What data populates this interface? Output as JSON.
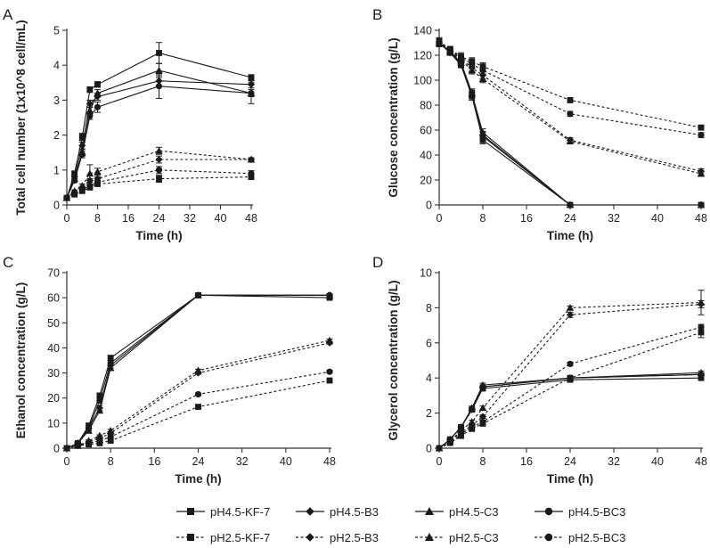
{
  "chart_data": [
    {
      "type": "line",
      "panel_label": "A",
      "xlabel": "Time (h)",
      "ylabel": "Total cell number (1x10^8 cell/mL)",
      "xlim": [
        0,
        48
      ],
      "ylim": [
        0,
        5
      ],
      "xticks": [
        0,
        8,
        16,
        24,
        32,
        40,
        48
      ],
      "yticks": [
        0,
        1,
        2,
        3,
        4,
        5
      ],
      "x": [
        0,
        2,
        4,
        6,
        8,
        24,
        48
      ],
      "series": [
        {
          "name": "pH4.5-KF-7",
          "values": [
            0.2,
            0.9,
            1.95,
            3.3,
            3.45,
            4.35,
            3.65
          ],
          "errors": [
            0,
            0.05,
            0.1,
            0.08,
            0.08,
            0.3,
            0.08
          ]
        },
        {
          "name": "pH4.5-B3",
          "values": [
            0.2,
            0.8,
            1.7,
            2.9,
            3.1,
            3.55,
            3.45
          ],
          "errors": [
            0,
            0.05,
            0.1,
            0.1,
            0.1,
            0.15,
            0.1
          ]
        },
        {
          "name": "pH4.5-C3",
          "values": [
            0.2,
            0.75,
            1.5,
            2.7,
            3.2,
            3.85,
            3.2
          ],
          "errors": [
            0,
            0.05,
            0.1,
            0.1,
            0.1,
            0.2,
            0.1
          ]
        },
        {
          "name": "pH4.5-BC3",
          "values": [
            0.2,
            0.7,
            1.45,
            2.55,
            2.8,
            3.4,
            3.2
          ],
          "errors": [
            0,
            0.05,
            0.1,
            0.1,
            0.15,
            0.35,
            0.3
          ]
        },
        {
          "name": "pH2.5-KF-7",
          "values": [
            0.2,
            0.3,
            0.4,
            0.5,
            0.6,
            0.75,
            0.8
          ],
          "errors": [
            0,
            0.03,
            0.03,
            0.05,
            0.05,
            0.1,
            0.05
          ]
        },
        {
          "name": "pH2.5-B3",
          "values": [
            0.2,
            0.35,
            0.5,
            0.7,
            0.75,
            1.3,
            1.3
          ],
          "errors": [
            0,
            0.03,
            0.03,
            0.05,
            0.05,
            0.1,
            0.05
          ]
        },
        {
          "name": "pH2.5-C3",
          "values": [
            0.2,
            0.4,
            0.55,
            0.9,
            0.95,
            1.55,
            1.3
          ],
          "errors": [
            0,
            0.03,
            0.05,
            0.25,
            0.1,
            0.1,
            0.05
          ]
        },
        {
          "name": "pH2.5-BC3",
          "values": [
            0.2,
            0.35,
            0.45,
            0.55,
            0.65,
            1.0,
            0.9
          ],
          "errors": [
            0,
            0.03,
            0.03,
            0.05,
            0.05,
            0.1,
            0.08
          ]
        }
      ]
    },
    {
      "type": "line",
      "panel_label": "B",
      "xlabel": "Time (h)",
      "ylabel": "Glucose concentration (g/L)",
      "xlim": [
        0,
        48
      ],
      "ylim": [
        0,
        140
      ],
      "xticks": [
        0,
        8,
        16,
        24,
        32,
        40,
        48
      ],
      "yticks": [
        0,
        20,
        40,
        60,
        80,
        100,
        120,
        140
      ],
      "x": [
        0,
        2,
        4,
        6,
        8,
        24,
        48
      ],
      "series": [
        {
          "name": "pH4.5-KF-7",
          "values": [
            130,
            122,
            112,
            87,
            52,
            0,
            0
          ],
          "errors": [
            3,
            2,
            2,
            3,
            3,
            0,
            0
          ]
        },
        {
          "name": "pH4.5-B3",
          "values": [
            130,
            122,
            113,
            88,
            56,
            0,
            0
          ],
          "errors": [
            3,
            2,
            2,
            3,
            3,
            0,
            0
          ]
        },
        {
          "name": "pH4.5-C3",
          "values": [
            130,
            123,
            114,
            89,
            58,
            0,
            0
          ],
          "errors": [
            3,
            2,
            2,
            3,
            3,
            0,
            0
          ]
        },
        {
          "name": "pH4.5-BC3",
          "values": [
            130,
            123,
            114,
            90,
            55,
            0,
            0
          ],
          "errors": [
            3,
            2,
            2,
            3,
            3,
            0,
            0
          ]
        },
        {
          "name": "pH2.5-KF-7",
          "values": [
            131,
            125,
            119,
            115,
            111,
            84,
            62
          ],
          "errors": [
            3,
            2,
            3,
            3,
            3,
            2,
            2
          ]
        },
        {
          "name": "pH2.5-B3",
          "values": [
            130,
            124,
            117,
            110,
            104,
            52,
            27
          ],
          "errors": [
            3,
            2,
            3,
            3,
            3,
            2,
            2
          ]
        },
        {
          "name": "pH2.5-C3",
          "values": [
            130,
            123,
            116,
            108,
            101,
            51,
            25
          ],
          "errors": [
            3,
            2,
            3,
            3,
            3,
            2,
            2
          ]
        },
        {
          "name": "pH2.5-BC3",
          "values": [
            131,
            124,
            118,
            113,
            108,
            73,
            56
          ],
          "errors": [
            3,
            2,
            3,
            3,
            3,
            2,
            2
          ]
        }
      ]
    },
    {
      "type": "line",
      "panel_label": "C",
      "xlabel": "Time (h)",
      "ylabel": "Ethanol concentration (g/L)",
      "xlim": [
        0,
        48
      ],
      "ylim": [
        0,
        70
      ],
      "xticks": [
        0,
        8,
        16,
        24,
        32,
        40,
        48
      ],
      "yticks": [
        0,
        10,
        20,
        30,
        40,
        50,
        60,
        70
      ],
      "x": [
        0,
        2,
        4,
        6,
        8,
        24,
        48
      ],
      "series": [
        {
          "name": "pH4.5-KF-7",
          "values": [
            0,
            2,
            9,
            21,
            36,
            61,
            60
          ],
          "errors": [
            0,
            0.5,
            1,
            1,
            1,
            0.5,
            0.5
          ]
        },
        {
          "name": "pH4.5-B3",
          "values": [
            0,
            2,
            8,
            16,
            33,
            61,
            61
          ],
          "errors": [
            0,
            0.5,
            1,
            1,
            1,
            0.5,
            0.5
          ]
        },
        {
          "name": "pH4.5-C3",
          "values": [
            0,
            2,
            7,
            15,
            32,
            61,
            61
          ],
          "errors": [
            0,
            0.5,
            1,
            1,
            1,
            0.5,
            0.5
          ]
        },
        {
          "name": "pH4.5-BC3",
          "values": [
            0,
            2,
            8,
            19,
            34,
            61,
            61
          ],
          "errors": [
            0,
            0.5,
            1,
            1,
            1,
            0.5,
            0.5
          ]
        },
        {
          "name": "pH2.5-KF-7",
          "values": [
            0,
            1,
            1.5,
            2,
            3,
            16.5,
            27
          ],
          "errors": [
            0,
            0.3,
            0.3,
            0.3,
            0.5,
            0.5,
            0.5
          ]
        },
        {
          "name": "pH2.5-B3",
          "values": [
            0,
            1,
            2.5,
            4,
            6,
            30,
            42
          ],
          "errors": [
            0,
            0.3,
            0.3,
            0.3,
            0.5,
            0.5,
            0.5
          ]
        },
        {
          "name": "pH2.5-C3",
          "values": [
            0,
            1,
            3,
            5,
            7,
            31,
            43
          ],
          "errors": [
            0,
            0.3,
            0.3,
            0.3,
            0.5,
            0.5,
            0.5
          ]
        },
        {
          "name": "pH2.5-BC3",
          "values": [
            0,
            1,
            2,
            3,
            4.5,
            21.5,
            30.5
          ],
          "errors": [
            0,
            0.3,
            0.3,
            0.3,
            0.5,
            0.5,
            0.5
          ]
        }
      ]
    },
    {
      "type": "line",
      "panel_label": "D",
      "xlabel": "Time (h)",
      "ylabel": "Glycerol concentration (g/L)",
      "xlim": [
        0,
        48
      ],
      "ylim": [
        0,
        10
      ],
      "xticks": [
        0,
        8,
        16,
        24,
        32,
        40,
        48
      ],
      "yticks": [
        0,
        2,
        4,
        6,
        8,
        10
      ],
      "x": [
        0,
        2,
        4,
        6,
        8,
        24,
        48
      ],
      "series": [
        {
          "name": "pH4.5-KF-7",
          "values": [
            0,
            0.5,
            1.2,
            2.2,
            3.4,
            3.9,
            4.0
          ],
          "errors": [
            0,
            0.05,
            0.08,
            0.1,
            0.1,
            0.1,
            0.1
          ]
        },
        {
          "name": "pH4.5-B3",
          "values": [
            0,
            0.5,
            1.2,
            2.2,
            3.5,
            4.0,
            4.2
          ],
          "errors": [
            0,
            0.05,
            0.08,
            0.1,
            0.1,
            0.1,
            0.1
          ]
        },
        {
          "name": "pH4.5-C3",
          "values": [
            0,
            0.5,
            1.2,
            2.3,
            3.6,
            4.0,
            4.3
          ],
          "errors": [
            0,
            0.05,
            0.08,
            0.1,
            0.1,
            0.1,
            0.1
          ]
        },
        {
          "name": "pH4.5-BC3",
          "values": [
            0,
            0.5,
            1.2,
            2.2,
            3.5,
            4.0,
            4.2
          ],
          "errors": [
            0,
            0.05,
            0.08,
            0.1,
            0.1,
            0.1,
            0.1
          ]
        },
        {
          "name": "pH2.5-KF-7",
          "values": [
            0,
            0.3,
            0.7,
            1.1,
            1.4,
            4.0,
            6.6
          ],
          "errors": [
            0,
            0.05,
            0.05,
            0.1,
            0.1,
            0.1,
            0.3
          ]
        },
        {
          "name": "pH2.5-B3",
          "values": [
            0,
            0.4,
            0.9,
            1.3,
            1.8,
            7.6,
            8.2
          ],
          "errors": [
            0,
            0.05,
            0.05,
            0.1,
            0.1,
            0.15,
            0.2
          ]
        },
        {
          "name": "pH2.5-C3",
          "values": [
            0,
            0.4,
            1.0,
            1.5,
            2.3,
            8.0,
            8.3
          ],
          "errors": [
            0,
            0.05,
            0.05,
            0.1,
            0.1,
            0.1,
            0.7
          ]
        },
        {
          "name": "pH2.5-BC3",
          "values": [
            0,
            0.3,
            0.8,
            1.2,
            1.5,
            4.8,
            6.9
          ],
          "errors": [
            0,
            0.05,
            0.05,
            0.1,
            0.1,
            0.1,
            0.15
          ]
        }
      ]
    }
  ],
  "legend": {
    "placement": "bottom",
    "entries": [
      {
        "name": "pH4.5-KF-7",
        "marker": "square",
        "line": "solid"
      },
      {
        "name": "pH4.5-B3",
        "marker": "diamond",
        "line": "solid"
      },
      {
        "name": "pH4.5-C3",
        "marker": "triangle",
        "line": "solid"
      },
      {
        "name": "pH4.5-BC3",
        "marker": "circle",
        "line": "solid"
      },
      {
        "name": "pH2.5-KF-7",
        "marker": "square",
        "line": "dashed"
      },
      {
        "name": "pH2.5-B3",
        "marker": "diamond",
        "line": "dashed"
      },
      {
        "name": "pH2.5-C3",
        "marker": "triangle",
        "line": "dashed"
      },
      {
        "name": "pH2.5-BC3",
        "marker": "circle",
        "line": "dashed"
      }
    ]
  },
  "colors": {
    "ink": "#1a1a1a",
    "axis": "#333333",
    "background": "#ffffff"
  }
}
